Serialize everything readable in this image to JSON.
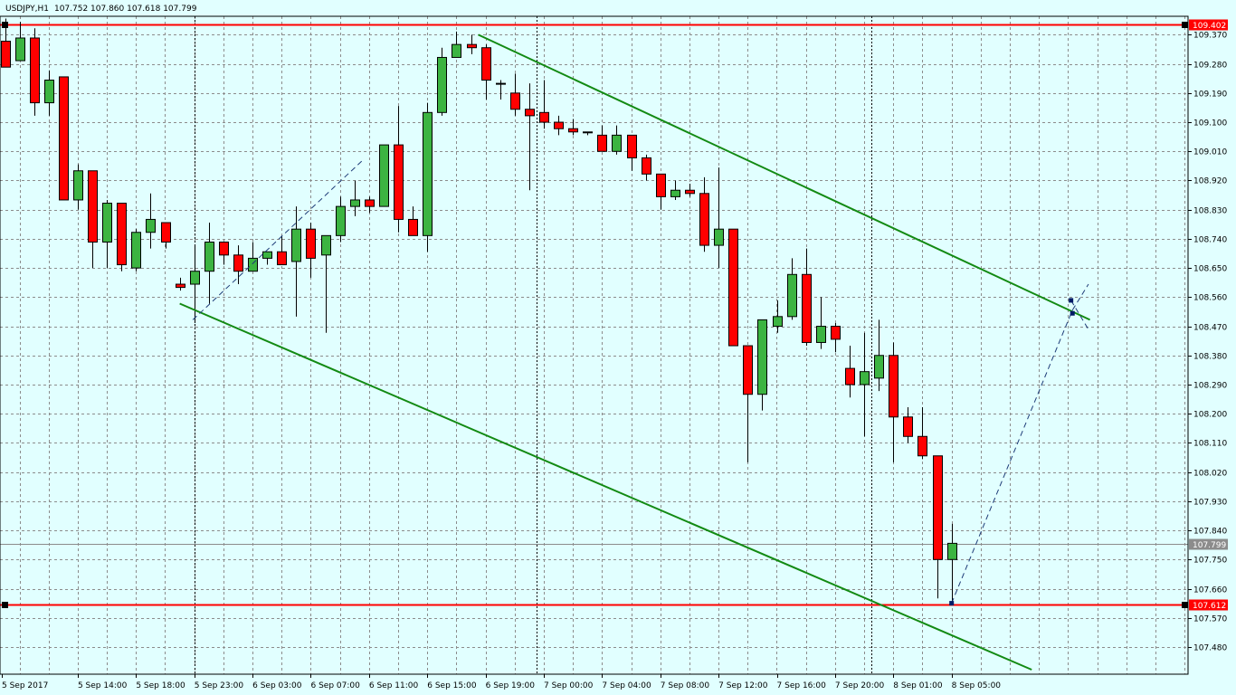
{
  "header": {
    "symbol": "USDJPY,H1",
    "ohlc": "107.752 107.860 107.618 107.799"
  },
  "chart_data": {
    "type": "candlestick",
    "symbol": "USDJPY",
    "timeframe": "H1",
    "ylim": [
      107.396,
      109.427
    ],
    "y_ticks": [
      "109.370",
      "109.280",
      "109.190",
      "109.100",
      "109.010",
      "108.920",
      "108.830",
      "108.740",
      "108.650",
      "108.560",
      "108.470",
      "108.380",
      "108.290",
      "108.200",
      "108.110",
      "108.020",
      "107.930",
      "107.840",
      "107.750",
      "107.660",
      "107.570",
      "107.480"
    ],
    "x_ticks": [
      {
        "label": "5 Sep 2017",
        "bar": -0.5
      },
      {
        "label": "5 Sep 14:00",
        "bar": 5
      },
      {
        "label": "5 Sep 18:00",
        "bar": 9
      },
      {
        "label": "5 Sep 23:00",
        "bar": 13
      },
      {
        "label": "6 Sep 03:00",
        "bar": 17
      },
      {
        "label": "6 Sep 07:00",
        "bar": 21
      },
      {
        "label": "6 Sep 11:00",
        "bar": 25
      },
      {
        "label": "6 Sep 15:00",
        "bar": 29
      },
      {
        "label": "6 Sep 19:00",
        "bar": 33
      },
      {
        "label": "7 Sep 00:00",
        "bar": 37
      },
      {
        "label": "7 Sep 04:00",
        "bar": 41
      },
      {
        "label": "7 Sep 08:00",
        "bar": 45
      },
      {
        "label": "7 Sep 12:00",
        "bar": 49
      },
      {
        "label": "7 Sep 16:00",
        "bar": 53
      },
      {
        "label": "7 Sep 20:00",
        "bar": 57
      },
      {
        "label": "8 Sep 01:00",
        "bar": 61
      },
      {
        "label": "8 Sep 05:00",
        "bar": 65
      }
    ],
    "day_separators": [
      13,
      36.5,
      59.5
    ],
    "candles": [
      [
        109.35,
        109.42,
        109.27,
        109.27
      ],
      [
        109.29,
        109.41,
        109.29,
        109.36
      ],
      [
        109.36,
        109.39,
        109.12,
        109.16
      ],
      [
        109.16,
        109.26,
        109.12,
        109.23
      ],
      [
        109.24,
        109.24,
        108.86,
        108.86
      ],
      [
        108.86,
        108.97,
        108.83,
        108.95
      ],
      [
        108.95,
        108.95,
        108.65,
        108.73
      ],
      [
        108.73,
        108.86,
        108.65,
        108.85
      ],
      [
        108.85,
        108.85,
        108.64,
        108.66
      ],
      [
        108.65,
        108.77,
        108.64,
        108.76
      ],
      [
        108.76,
        108.88,
        108.71,
        108.8
      ],
      [
        108.79,
        108.79,
        108.71,
        108.73
      ],
      [
        108.6,
        108.62,
        108.58,
        108.59
      ],
      [
        108.6,
        108.72,
        108.48,
        108.64
      ],
      [
        108.64,
        108.79,
        108.54,
        108.73
      ],
      [
        108.73,
        108.73,
        108.66,
        108.69
      ],
      [
        108.69,
        108.72,
        108.6,
        108.64
      ],
      [
        108.64,
        108.73,
        108.64,
        108.68
      ],
      [
        108.68,
        108.7,
        108.66,
        108.7
      ],
      [
        108.7,
        108.75,
        108.68,
        108.66
      ],
      [
        108.67,
        108.84,
        108.5,
        108.77
      ],
      [
        108.77,
        108.79,
        108.62,
        108.68
      ],
      [
        108.69,
        108.75,
        108.45,
        108.75
      ],
      [
        108.75,
        108.87,
        108.73,
        108.84
      ],
      [
        108.84,
        108.92,
        108.81,
        108.86
      ],
      [
        108.86,
        108.87,
        108.82,
        108.84
      ],
      [
        108.84,
        109.03,
        108.84,
        109.03
      ],
      [
        109.03,
        109.15,
        108.76,
        108.8
      ],
      [
        108.8,
        108.84,
        108.76,
        108.75
      ],
      [
        108.75,
        109.16,
        108.7,
        109.13
      ],
      [
        109.13,
        109.33,
        109.12,
        109.3
      ],
      [
        109.3,
        109.38,
        109.3,
        109.34
      ],
      [
        109.34,
        109.37,
        109.31,
        109.33
      ],
      [
        109.33,
        109.34,
        109.17,
        109.23
      ],
      [
        109.22,
        109.23,
        109.17,
        109.22
      ],
      [
        109.19,
        109.25,
        109.12,
        109.14
      ],
      [
        109.14,
        109.22,
        108.89,
        109.12
      ],
      [
        109.13,
        109.23,
        109.08,
        109.1
      ],
      [
        109.1,
        109.12,
        109.06,
        109.08
      ],
      [
        109.08,
        109.11,
        109.06,
        109.07
      ],
      [
        109.07,
        109.07,
        109.06,
        109.07
      ],
      [
        109.06,
        109.09,
        109.02,
        109.01
      ],
      [
        109.01,
        109.09,
        109.0,
        109.06
      ],
      [
        109.06,
        109.06,
        108.95,
        108.99
      ],
      [
        108.99,
        109.0,
        108.92,
        108.94
      ],
      [
        108.94,
        108.94,
        108.83,
        108.87
      ],
      [
        108.87,
        108.92,
        108.86,
        108.89
      ],
      [
        108.89,
        108.91,
        108.87,
        108.88
      ],
      [
        108.88,
        108.93,
        108.7,
        108.72
      ],
      [
        108.72,
        108.96,
        108.65,
        108.77
      ],
      [
        108.77,
        108.77,
        108.41,
        108.41
      ],
      [
        108.41,
        108.41,
        108.05,
        108.26
      ],
      [
        108.26,
        108.49,
        108.21,
        108.49
      ],
      [
        108.47,
        108.55,
        108.45,
        108.5
      ],
      [
        108.5,
        108.68,
        108.49,
        108.63
      ],
      [
        108.63,
        108.71,
        108.41,
        108.42
      ],
      [
        108.42,
        108.56,
        108.4,
        108.47
      ],
      [
        108.47,
        108.48,
        108.39,
        108.43
      ],
      [
        108.34,
        108.41,
        108.25,
        108.29
      ],
      [
        108.29,
        108.45,
        108.13,
        108.33
      ],
      [
        108.31,
        108.49,
        108.27,
        108.38
      ],
      [
        108.38,
        108.42,
        108.05,
        108.19
      ],
      [
        108.19,
        108.22,
        108.11,
        108.13
      ],
      [
        108.13,
        108.22,
        108.06,
        108.07
      ],
      [
        108.07,
        108.07,
        107.63,
        107.75
      ],
      [
        107.75,
        107.86,
        107.62,
        107.8
      ]
    ],
    "horizontal_lines": [
      {
        "price": 109.402,
        "label": "109.402",
        "color": "#ff0000"
      },
      {
        "price": 107.612,
        "label": "107.612",
        "color": "#ff0000"
      }
    ],
    "current_price": {
      "price": 107.799,
      "label": "107.799",
      "color": "#8c8c8c"
    },
    "trend_lines": [
      {
        "from": [
          32.5,
          109.37
        ],
        "to": [
          74.5,
          108.49
        ],
        "color": "#138a13"
      },
      {
        "from": [
          12,
          108.54
        ],
        "to": [
          70.5,
          107.41
        ],
        "color": "#138a13"
      }
    ],
    "dashed_lines": [
      {
        "from": [
          12.9,
          108.49
        ],
        "to": [
          24.5,
          108.98
        ]
      },
      {
        "from": [
          65,
          107.615
        ],
        "to": [
          73.3,
          108.52
        ]
      },
      {
        "from": [
          73.3,
          108.52
        ],
        "to": [
          74.4,
          108.6
        ]
      },
      {
        "from": [
          73.2,
          108.55
        ],
        "to": [
          74.4,
          108.46
        ]
      }
    ],
    "markers": [
      {
        "bar": 65,
        "price": 107.615
      },
      {
        "bar": 73.2,
        "price": 108.55
      },
      {
        "bar": 73.3,
        "price": 108.51
      }
    ],
    "colors": {
      "background": "#e1ffff",
      "bull": "#3cb441",
      "bear": "#ff0000",
      "grid": "#8c8c8c",
      "text": "#000000"
    }
  }
}
